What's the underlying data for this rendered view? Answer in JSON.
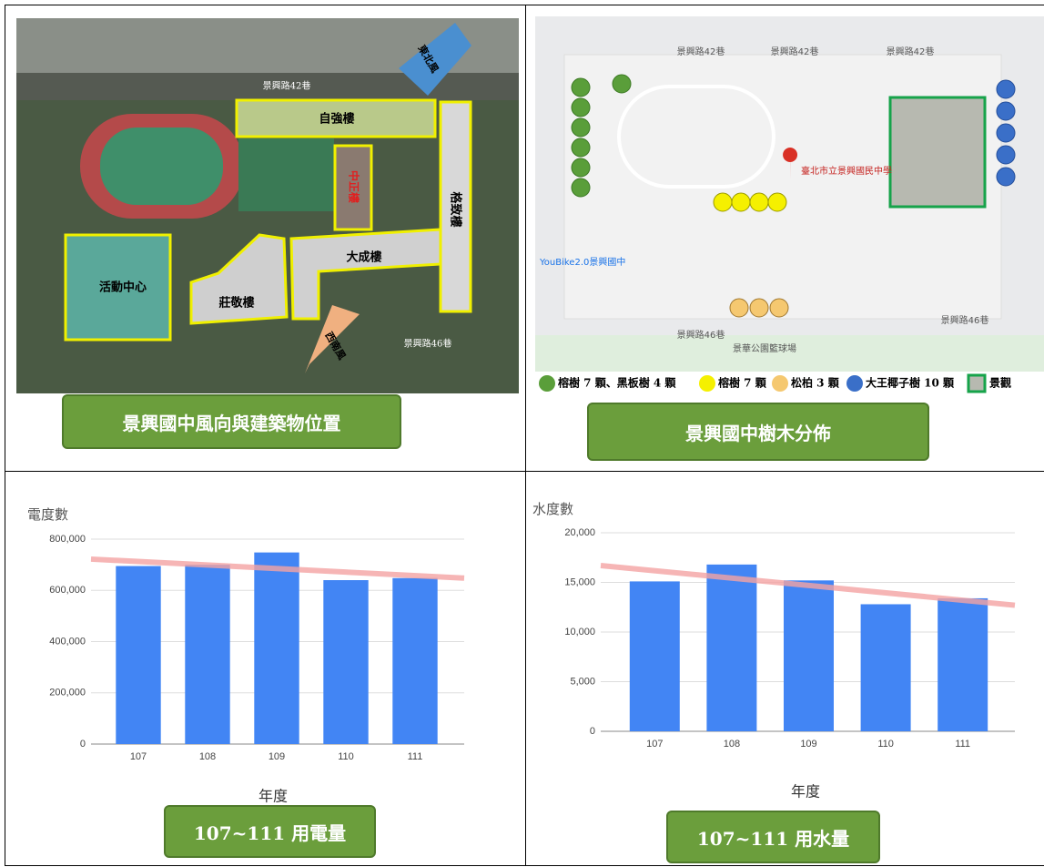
{
  "maps": [
    {
      "caption": "景興國中風向與建築物位置",
      "labels": [
        "自強樓",
        "中正樓",
        "大成樓",
        "莊敬樓",
        "格致樓",
        "活動中心",
        "東北風",
        "西南風",
        "景興路42巷",
        "景興路46巷"
      ]
    },
    {
      "caption": "景興國中樹木分佈",
      "labels": [
        "臺北市立景興國民中學",
        "景興路42巷",
        "景興路42巷",
        "景興路42巷",
        "景興路46巷",
        "景興路46巷",
        "YouBike2.0景興國中",
        "景華公園籃球場"
      ],
      "legend": [
        "榕樹 7 顆、黑板樹 4 顆",
        "榕樹 7 顆",
        "松柏 3 顆",
        "大王椰子樹 10 顆",
        "景觀"
      ]
    }
  ],
  "chart_data": [
    {
      "type": "bar",
      "y_title": "電度數",
      "x_title": "年度",
      "caption": "107~111 用電量",
      "categories": [
        "107",
        "108",
        "109",
        "110",
        "111"
      ],
      "values": [
        695000,
        700000,
        748000,
        640000,
        648000
      ],
      "color": "#4285f4",
      "trend_ends": [
        722000,
        648000
      ],
      "trend_color": "#f4a3a3",
      "ylim": [
        0,
        800000
      ],
      "yticks": [
        0,
        {
          "value": 200000,
          "label": "200,000"
        },
        {
          "value": 400000,
          "label": "400,000"
        },
        {
          "value": 600000,
          "label": "600,000"
        },
        {
          "value": 800000,
          "label": "800,000"
        }
      ],
      "grid": true
    },
    {
      "type": "bar",
      "y_title": "水度數",
      "x_title": "年度",
      "caption": "107~111 用水量",
      "categories": [
        "107",
        "108",
        "109",
        "110",
        "111"
      ],
      "values": [
        15100,
        16800,
        15200,
        12800,
        13400
      ],
      "color": "#4285f4",
      "trend_ends": [
        16700,
        12700
      ],
      "trend_color": "#f4a3a3",
      "ylim": [
        0,
        20000
      ],
      "yticks": [
        0,
        {
          "value": 5000,
          "label": "5,000"
        },
        {
          "value": 10000,
          "label": "10,000"
        },
        {
          "value": 15000,
          "label": "15,000"
        },
        {
          "value": 20000,
          "label": "20,000"
        }
      ],
      "grid": true
    }
  ]
}
